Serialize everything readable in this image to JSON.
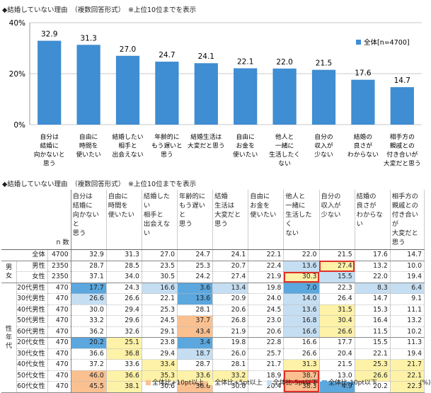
{
  "chart_data": {
    "type": "bar",
    "title": "◆結婚していない理由　（複数回答形式）　※上位10位までを表示",
    "categories": [
      "自分は結婚に向かないと思う",
      "自由に時間を使いたい",
      "結婚したい相手と出会えない",
      "年齢的にもう遅いと思う",
      "結婚生活は大変だと思う",
      "自由にお金を使いたい",
      "他人と一緒に生活したくない",
      "自分の収入が少ない",
      "結婚の良さがわからない",
      "相手方の親戚との付き合いが大変だと思う"
    ],
    "category_lines": [
      [
        "自分は",
        "結婚に",
        "向かないと",
        "思う"
      ],
      [
        "自由に",
        "時間を",
        "使いたい"
      ],
      [
        "結婚したい",
        "相手と",
        "出会えない"
      ],
      [
        "年齢的に",
        "もう遅いと",
        "思う"
      ],
      [
        "結婚生活は",
        "大変だと思う"
      ],
      [
        "自由に",
        "お金を",
        "使いたい"
      ],
      [
        "他人と",
        "一緒に",
        "生活したく",
        "ない"
      ],
      [
        "自分の",
        "収入が",
        "少ない"
      ],
      [
        "結婚の",
        "良さが",
        "わからない"
      ],
      [
        "相手方の",
        "親戚との",
        "付き合いが",
        "大変だと思う"
      ]
    ],
    "series": [
      {
        "name": "全体[n=4700]",
        "values": [
          32.9,
          31.3,
          27.0,
          24.7,
          24.1,
          22.1,
          22.0,
          21.5,
          17.6,
          14.7
        ]
      }
    ],
    "value_labels": [
      "32.9",
      "31.3",
      "27.0",
      "24.7",
      "24.1",
      "22.1",
      "22.0",
      "21.5",
      "17.6",
      "14.7"
    ],
    "ylim": [
      0,
      40
    ],
    "yticks": [
      "0%",
      "20%",
      "40%"
    ],
    "color": "#3f8dd2",
    "legend": "top-right"
  },
  "table": {
    "title": "◆結婚していない理由　（複数回答形式）　※上位10位までを表示",
    "n_header": "n 数",
    "headers": [
      [
        "自分は",
        "結婚に",
        "向かないと",
        "思う"
      ],
      [
        "自由に",
        "時間を",
        "使いたい"
      ],
      [
        "結婚したい",
        "相手と",
        "出会えない"
      ],
      [
        "年齢的に",
        "もう遅いと",
        "思う"
      ],
      [
        "結婚",
        "生活は",
        "大変だと",
        "思う"
      ],
      [
        "自由に",
        "お金を",
        "使いたい"
      ],
      [
        "他人と",
        "一緒に",
        "生活したく",
        "ない"
      ],
      [
        "自分の",
        "収入が",
        "少ない"
      ],
      [
        "結婚の",
        "良さが",
        "わからない"
      ],
      [
        "相手方の",
        "親戚との",
        "付き合いが",
        "大変だと",
        "思う"
      ]
    ],
    "groups": [
      {
        "label": "男女",
        "rows": [
          1,
          2
        ]
      },
      {
        "label": "性年代",
        "rows": [
          3,
          4,
          5,
          6,
          7,
          8,
          9,
          10,
          11,
          12
        ]
      }
    ],
    "rows": [
      {
        "label": "全体",
        "n": "4700",
        "v": [
          "32.9",
          "31.3",
          "27.0",
          "24.7",
          "24.1",
          "22.1",
          "22.0",
          "21.5",
          "17.6",
          "14.7"
        ],
        "c": [
          "",
          "",
          "",
          "",
          "",
          "",
          "",
          "",
          "",
          ""
        ]
      },
      {
        "label": "男性",
        "n": "2350",
        "v": [
          "28.7",
          "28.5",
          "23.5",
          "25.3",
          "20.7",
          "22.4",
          "13.6",
          "27.4",
          "13.2",
          "10.0"
        ],
        "c": [
          "",
          "",
          "",
          "",
          "",
          "",
          "3",
          "2x",
          "",
          ""
        ]
      },
      {
        "label": "女性",
        "n": "2350",
        "v": [
          "37.1",
          "34.0",
          "30.5",
          "24.2",
          "27.4",
          "21.9",
          "30.3",
          "15.5",
          "22.0",
          "19.4"
        ],
        "c": [
          "",
          "",
          "",
          "",
          "",
          "",
          "2x",
          "3",
          "",
          ""
        ]
      },
      {
        "label": "20代男性",
        "n": "470",
        "v": [
          "17.7",
          "24.3",
          "16.6",
          "3.6",
          "13.4",
          "19.8",
          "7.0",
          "22.3",
          "8.3",
          "6.4"
        ],
        "c": [
          "4",
          "",
          "3",
          "4",
          "3",
          "",
          "4",
          "",
          "3",
          "3"
        ]
      },
      {
        "label": "30代男性",
        "n": "470",
        "v": [
          "26.6",
          "26.6",
          "22.1",
          "13.6",
          "20.9",
          "24.0",
          "14.0",
          "26.4",
          "14.7",
          "9.1"
        ],
        "c": [
          "3",
          "",
          "",
          "4",
          "",
          "",
          "3",
          "",
          "",
          ""
        ]
      },
      {
        "label": "40代男性",
        "n": "470",
        "v": [
          "30.0",
          "29.4",
          "25.3",
          "28.1",
          "20.6",
          "24.5",
          "13.6",
          "31.5",
          "15.3",
          "11.1"
        ],
        "c": [
          "",
          "",
          "",
          "",
          "",
          "",
          "3",
          "2",
          "",
          ""
        ]
      },
      {
        "label": "50代男性",
        "n": "470",
        "v": [
          "33.2",
          "29.6",
          "24.5",
          "37.7",
          "26.8",
          "23.0",
          "16.8",
          "30.4",
          "16.4",
          "13.2"
        ],
        "c": [
          "",
          "",
          "",
          "1",
          "",
          "",
          "3",
          "2",
          "",
          ""
        ]
      },
      {
        "label": "60代男性",
        "n": "470",
        "v": [
          "36.2",
          "32.6",
          "29.1",
          "43.4",
          "21.9",
          "20.6",
          "16.6",
          "26.6",
          "11.5",
          "10.2"
        ],
        "c": [
          "",
          "",
          "",
          "1",
          "",
          "",
          "3",
          "2",
          "",
          ""
        ]
      },
      {
        "label": "20代女性",
        "n": "470",
        "v": [
          "20.2",
          "25.1",
          "23.8",
          "3.4",
          "19.8",
          "22.8",
          "16.6",
          "17.7",
          "15.5",
          "11.3"
        ],
        "c": [
          "4",
          "2",
          "",
          "4",
          "",
          "",
          "",
          "",
          "",
          ""
        ]
      },
      {
        "label": "30代女性",
        "n": "470",
        "v": [
          "36.6",
          "36.8",
          "29.4",
          "18.7",
          "26.0",
          "25.7",
          "26.6",
          "20.4",
          "22.1",
          "19.4"
        ],
        "c": [
          "",
          "2",
          "",
          "3",
          "",
          "",
          "",
          "",
          "",
          ""
        ]
      },
      {
        "label": "40代女性",
        "n": "470",
        "v": [
          "37.2",
          "33.6",
          "33.4",
          "28.7",
          "28.1",
          "21.7",
          "31.3",
          "21.5",
          "25.3",
          "21.7"
        ],
        "c": [
          "",
          "",
          "2",
          "",
          "",
          "",
          "2",
          "",
          "2",
          "2"
        ]
      },
      {
        "label": "50代女性",
        "n": "470",
        "v": [
          "46.0",
          "36.6",
          "35.3",
          "33.6",
          "33.2",
          "18.9",
          "38.7",
          "13.0",
          "26.6",
          "22.1"
        ],
        "c": [
          "1",
          "2",
          "2",
          "2",
          "2",
          "",
          "1x",
          "",
          "2",
          "2"
        ]
      },
      {
        "label": "60代女性",
        "n": "470",
        "v": [
          "45.5",
          "38.1",
          "30.6",
          "36.6",
          "30.0",
          "20.4",
          "38.3",
          "4.9",
          "20.2",
          "22.3"
        ],
        "c": [
          "1",
          "2",
          "",
          "1",
          "",
          "",
          "1x",
          "4",
          "",
          "2"
        ]
      }
    ],
    "legend": [
      {
        "label": "全体比+10pt以上",
        "color": "#fac090"
      },
      {
        "label": "全体比+5pt以上",
        "color": "#fdf2a7"
      },
      {
        "label": "全体比-5pt以下",
        "color": "#c5def2"
      },
      {
        "label": "全体比-10pt以下",
        "color": "#5ba7de"
      }
    ],
    "pct_label": "(%)"
  }
}
